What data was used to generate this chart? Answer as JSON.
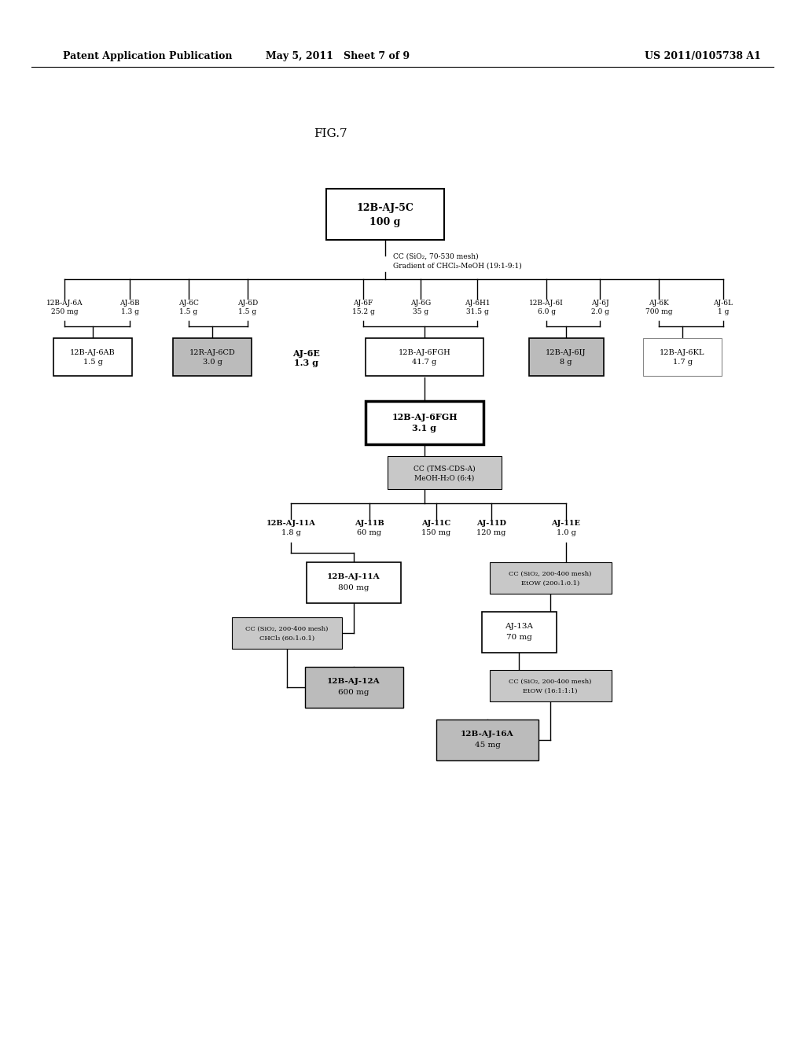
{
  "header_left": "Patent Application Publication",
  "header_mid": "May 5, 2011   Sheet 7 of 9",
  "header_right": "US 2011/0105738 A1",
  "title": "FIG.7",
  "bg": "#ffffff"
}
